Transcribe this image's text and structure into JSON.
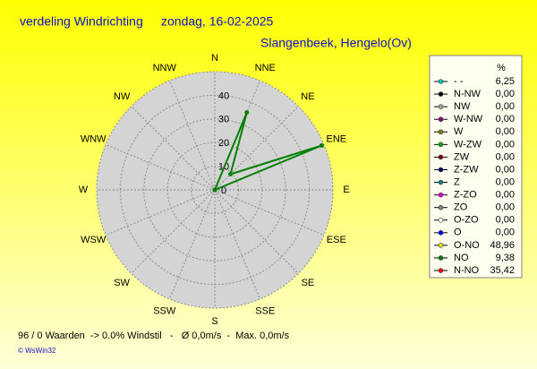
{
  "chart_data": {
    "type": "radar",
    "title": "verdeling Windrichting",
    "date": "zondag, 16-02-2025",
    "subtitle": "Slangenbeek, Hengelo(Ov)",
    "categories": [
      "N",
      "NNE",
      "NE",
      "ENE",
      "E",
      "ESE",
      "SE",
      "SSE",
      "S",
      "SSW",
      "SW",
      "WSW",
      "W",
      "WNW",
      "NW",
      "NNW"
    ],
    "values": [
      0,
      35.42,
      9.38,
      48.96,
      0,
      0,
      0,
      0,
      0,
      0,
      0,
      0,
      0,
      0,
      0,
      0
    ],
    "color": "#008000",
    "rlim": [
      0,
      50
    ],
    "rticks": [
      0,
      10,
      20,
      30,
      40
    ],
    "grid": true,
    "legend_header": "%",
    "legend": [
      {
        "name": "- -",
        "color": "#00c8c8",
        "value": 6.25,
        "value_label": "6,25"
      },
      {
        "name": "N-NW",
        "color": "#000000",
        "value": 0,
        "value_label": "0,00"
      },
      {
        "name": "NW",
        "color": "#a0a0a0",
        "value": 0,
        "value_label": "0,00"
      },
      {
        "name": "W-NW",
        "color": "#800080",
        "value": 0,
        "value_label": "0,00"
      },
      {
        "name": "W",
        "color": "#808000",
        "value": 0,
        "value_label": "0,00"
      },
      {
        "name": "W-ZW",
        "color": "#00b000",
        "value": 0,
        "value_label": "0,00"
      },
      {
        "name": "ZW",
        "color": "#800000",
        "value": 0,
        "value_label": "0,00"
      },
      {
        "name": "Z-ZW",
        "color": "#000080",
        "value": 0,
        "value_label": "0,00"
      },
      {
        "name": "Z",
        "color": "#008080",
        "value": 0,
        "value_label": "0,00"
      },
      {
        "name": "Z-ZO",
        "color": "#e000e0",
        "value": 0,
        "value_label": "0,00"
      },
      {
        "name": "ZO",
        "color": "#808080",
        "value": 0,
        "value_label": "0,00"
      },
      {
        "name": "O-ZO",
        "color": "#ffffff",
        "value": 0,
        "value_label": "0,00"
      },
      {
        "name": "O",
        "color": "#0000ff",
        "value": 0,
        "value_label": "0,00"
      },
      {
        "name": "O-NO",
        "color": "#e0e000",
        "value": 48.96,
        "value_label": "48,96"
      },
      {
        "name": "NO",
        "color": "#008000",
        "value": 9.38,
        "value_label": "9,38"
      },
      {
        "name": "N-NO",
        "color": "#ff0000",
        "value": 35.42,
        "value_label": "35,42"
      }
    ],
    "footer": "96 / 0 Waarden  -> 0.0% Windstil   -   Ø 0,0m/s  -  Max. 0,0m/s",
    "credit": "© WsWin32"
  }
}
